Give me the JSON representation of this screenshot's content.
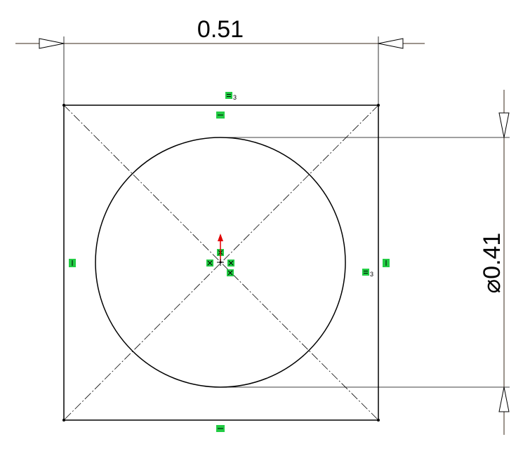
{
  "sketch": {
    "width_dimension": {
      "label": "0.51"
    },
    "diameter_dimension": {
      "symbol": "⌀",
      "value": "0.41"
    },
    "equal_relation_index": "3",
    "colors": {
      "relation_fill": "#22cc44",
      "origin_arrow": "#e00000",
      "geometry": "#000000",
      "dimension_line": "#3a2a1a"
    }
  }
}
